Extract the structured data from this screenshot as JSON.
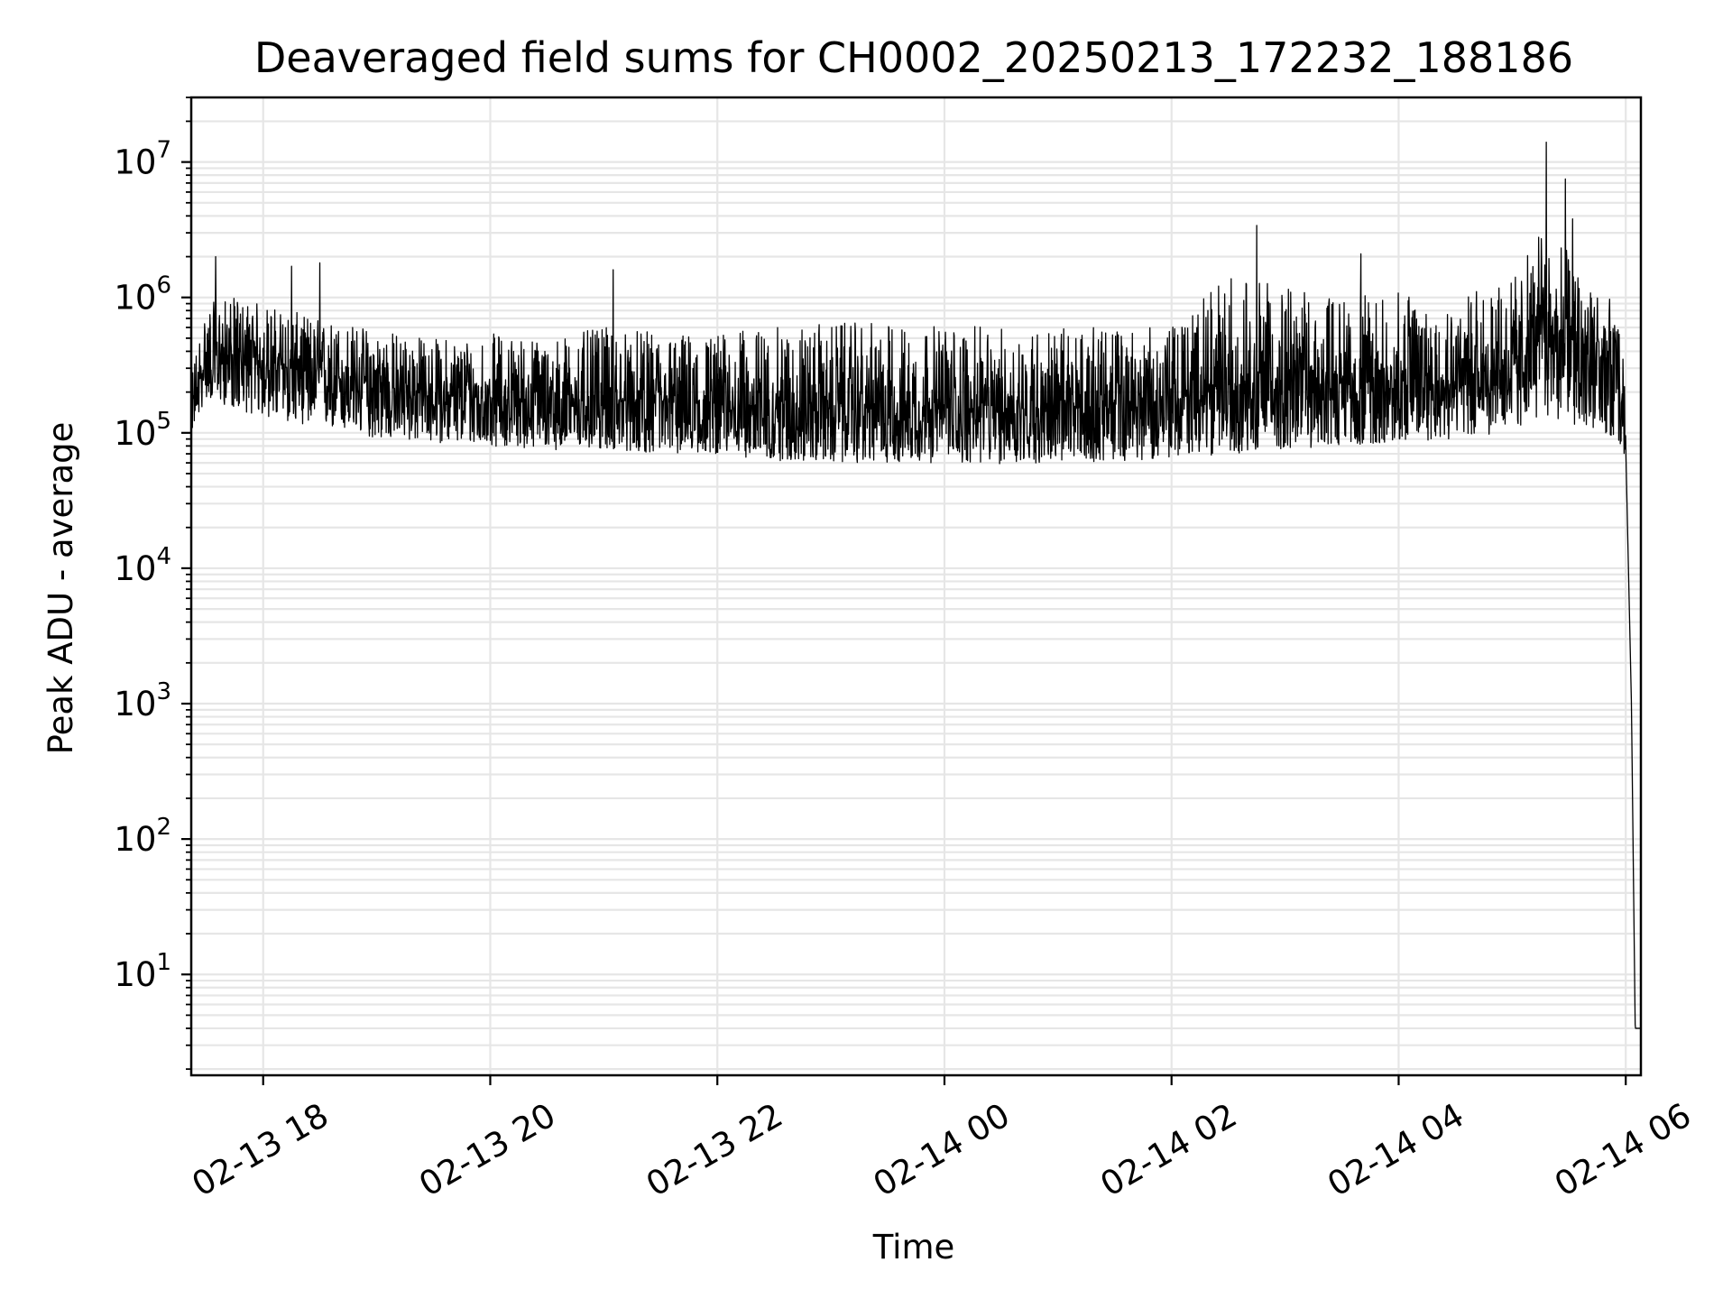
{
  "chart_data": {
    "type": "line",
    "title": "Deaveraged field sums for CH0002_20250213_172232_188186",
    "xlabel": "Time",
    "ylabel": "Peak ADU - average",
    "yscale": "log",
    "ylim": [
      1.8,
      30000000
    ],
    "xlim": [
      "2025-02-13 17:22",
      "2025-02-14 06:08"
    ],
    "grid": true,
    "line_color": "#000000",
    "grid_color": "#e6e6e6",
    "x_ticks": [
      {
        "value": "2025-02-13 18:00",
        "label": "02-13 18"
      },
      {
        "value": "2025-02-13 20:00",
        "label": "02-13 20"
      },
      {
        "value": "2025-02-13 22:00",
        "label": "02-13 22"
      },
      {
        "value": "2025-02-14 00:00",
        "label": "02-14 00"
      },
      {
        "value": "2025-02-14 02:00",
        "label": "02-14 02"
      },
      {
        "value": "2025-02-14 04:00",
        "label": "02-14 04"
      },
      {
        "value": "2025-02-14 06:00",
        "label": "02-14 06"
      }
    ],
    "y_ticks": [
      {
        "value": 10,
        "base": "10",
        "exp": "1"
      },
      {
        "value": 100,
        "base": "10",
        "exp": "2"
      },
      {
        "value": 1000,
        "base": "10",
        "exp": "3"
      },
      {
        "value": 10000,
        "base": "10",
        "exp": "4"
      },
      {
        "value": 100000,
        "base": "10",
        "exp": "5"
      },
      {
        "value": 1000000,
        "base": "10",
        "exp": "6"
      },
      {
        "value": 10000000,
        "base": "10",
        "exp": "7"
      }
    ],
    "series": [
      {
        "x": [
          "2025-02-13 17:22",
          "2025-02-13 17:30",
          "2025-02-13 17:45",
          "2025-02-13 18:00",
          "2025-02-13 18:30",
          "2025-02-13 19:00",
          "2025-02-13 19:30",
          "2025-02-13 20:00",
          "2025-02-13 20:30",
          "2025-02-13 21:00",
          "2025-02-13 21:30",
          "2025-02-13 22:00",
          "2025-02-13 22:30",
          "2025-02-13 23:00",
          "2025-02-13 23:30",
          "2025-02-14 00:00",
          "2025-02-14 00:30",
          "2025-02-14 01:00",
          "2025-02-14 01:30",
          "2025-02-14 02:00",
          "2025-02-14 02:30",
          "2025-02-14 03:00",
          "2025-02-14 03:30",
          "2025-02-14 04:00",
          "2025-02-14 04:30",
          "2025-02-14 05:00",
          "2025-02-14 05:15",
          "2025-02-14 05:30",
          "2025-02-14 05:45",
          "2025-02-14 05:55",
          "2025-02-14 06:00",
          "2025-02-14 06:03",
          "2025-02-14 06:05",
          "2025-02-14 06:08"
        ],
        "typical": [
          150000,
          350000,
          380000,
          330000,
          270000,
          220000,
          190000,
          180000,
          175000,
          170000,
          165000,
          160000,
          155000,
          150000,
          150000,
          150000,
          150000,
          150000,
          160000,
          170000,
          220000,
          240000,
          230000,
          240000,
          260000,
          300000,
          600000,
          500000,
          350000,
          300000,
          80000,
          1000,
          4,
          4
        ],
        "low": [
          100000,
          180000,
          150000,
          130000,
          110000,
          90000,
          85000,
          80000,
          75000,
          75000,
          70000,
          70000,
          62000,
          60000,
          60000,
          60000,
          58000,
          60000,
          62000,
          65000,
          70000,
          75000,
          80000,
          85000,
          90000,
          100000,
          130000,
          120000,
          100000,
          90000,
          60000,
          1000,
          4,
          4
        ],
        "high": [
          300000,
          900000,
          1000000,
          900000,
          700000,
          600000,
          500000,
          550000,
          500000,
          600000,
          550000,
          550000,
          600000,
          650000,
          650000,
          620000,
          600000,
          600000,
          600000,
          600000,
          1500000,
          1200000,
          1000000,
          1100000,
          1000000,
          1400000,
          3000000,
          2500000,
          1200000,
          900000,
          400000,
          1000,
          4,
          4
        ]
      }
    ],
    "notable_peaks": [
      {
        "x": "2025-02-13 17:35",
        "y": 2000000
      },
      {
        "x": "2025-02-13 18:15",
        "y": 1700000
      },
      {
        "x": "2025-02-13 18:30",
        "y": 1800000
      },
      {
        "x": "2025-02-13 21:05",
        "y": 1600000
      },
      {
        "x": "2025-02-14 02:45",
        "y": 3400000
      },
      {
        "x": "2025-02-14 03:40",
        "y": 2100000
      },
      {
        "x": "2025-02-14 05:18",
        "y": 14000000
      },
      {
        "x": "2025-02-14 05:28",
        "y": 7500000
      },
      {
        "x": "2025-02-14 05:32",
        "y": 3800000
      }
    ]
  }
}
